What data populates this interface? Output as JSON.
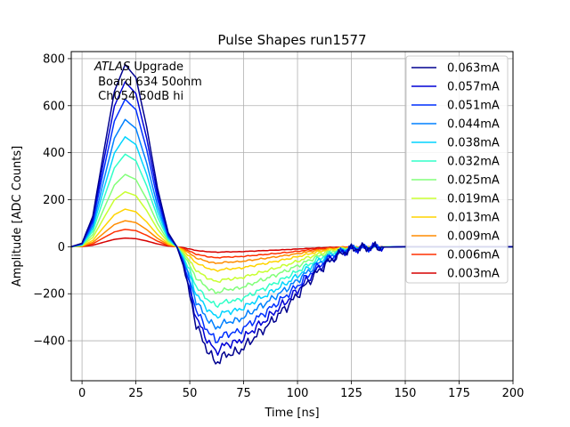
{
  "chart_data": {
    "type": "line",
    "title": "Pulse Shapes run1577",
    "xlabel": "Time [ns]",
    "ylabel": "Amplitude [ADC Counts]",
    "xlim": [
      -5,
      200
    ],
    "ylim": [
      -570,
      830
    ],
    "xticks": [
      0,
      25,
      50,
      75,
      100,
      125,
      150,
      175,
      200
    ],
    "yticks": [
      -400,
      -200,
      0,
      200,
      400,
      600,
      800
    ],
    "grid": true,
    "legend_position": "top-right",
    "annotation": {
      "italic": "ATLAS",
      "first_line_rest": " Upgrade",
      "line2": " Board 634 50ohm",
      "line3": " Ch054 50dB hi"
    },
    "reference_amplitude_mA": 0.063,
    "reference_shape": {
      "x": [
        -5,
        0,
        5,
        10,
        15,
        20,
        25,
        30,
        35,
        40,
        44,
        47,
        50,
        53,
        56,
        59,
        62,
        65,
        68,
        72,
        76,
        80,
        85,
        90,
        95,
        100,
        105,
        110,
        115,
        120,
        125,
        130,
        135,
        140,
        150,
        160,
        175,
        200
      ],
      "y": [
        0,
        15,
        130,
        400,
        660,
        775,
        720,
        510,
        250,
        60,
        0,
        -80,
        -210,
        -330,
        -400,
        -450,
        -495,
        -470,
        -455,
        -450,
        -420,
        -385,
        -345,
        -300,
        -255,
        -205,
        -150,
        -100,
        -60,
        -30,
        -10,
        -5,
        -3,
        -2,
        0,
        0,
        0,
        0
      ]
    },
    "series": [
      {
        "name": "0.063mA",
        "amplitude_mA": 0.063,
        "color": "#00008f"
      },
      {
        "name": "0.057mA",
        "amplitude_mA": 0.057,
        "color": "#0000d6"
      },
      {
        "name": "0.051mA",
        "amplitude_mA": 0.051,
        "color": "#0030ff"
      },
      {
        "name": "0.044mA",
        "amplitude_mA": 0.044,
        "color": "#0080ff"
      },
      {
        "name": "0.038mA",
        "amplitude_mA": 0.038,
        "color": "#00d4ff"
      },
      {
        "name": "0.032mA",
        "amplitude_mA": 0.032,
        "color": "#30ffc8"
      },
      {
        "name": "0.025mA",
        "amplitude_mA": 0.025,
        "color": "#82ff7a"
      },
      {
        "name": "0.019mA",
        "amplitude_mA": 0.019,
        "color": "#c8ff30"
      },
      {
        "name": "0.013mA",
        "amplitude_mA": 0.013,
        "color": "#ffd400"
      },
      {
        "name": "0.009mA",
        "amplitude_mA": 0.009,
        "color": "#ff8c00"
      },
      {
        "name": "0.006mA",
        "amplitude_mA": 0.006,
        "color": "#ff3000"
      },
      {
        "name": "0.003mA",
        "amplitude_mA": 0.003,
        "color": "#d60000"
      }
    ]
  }
}
